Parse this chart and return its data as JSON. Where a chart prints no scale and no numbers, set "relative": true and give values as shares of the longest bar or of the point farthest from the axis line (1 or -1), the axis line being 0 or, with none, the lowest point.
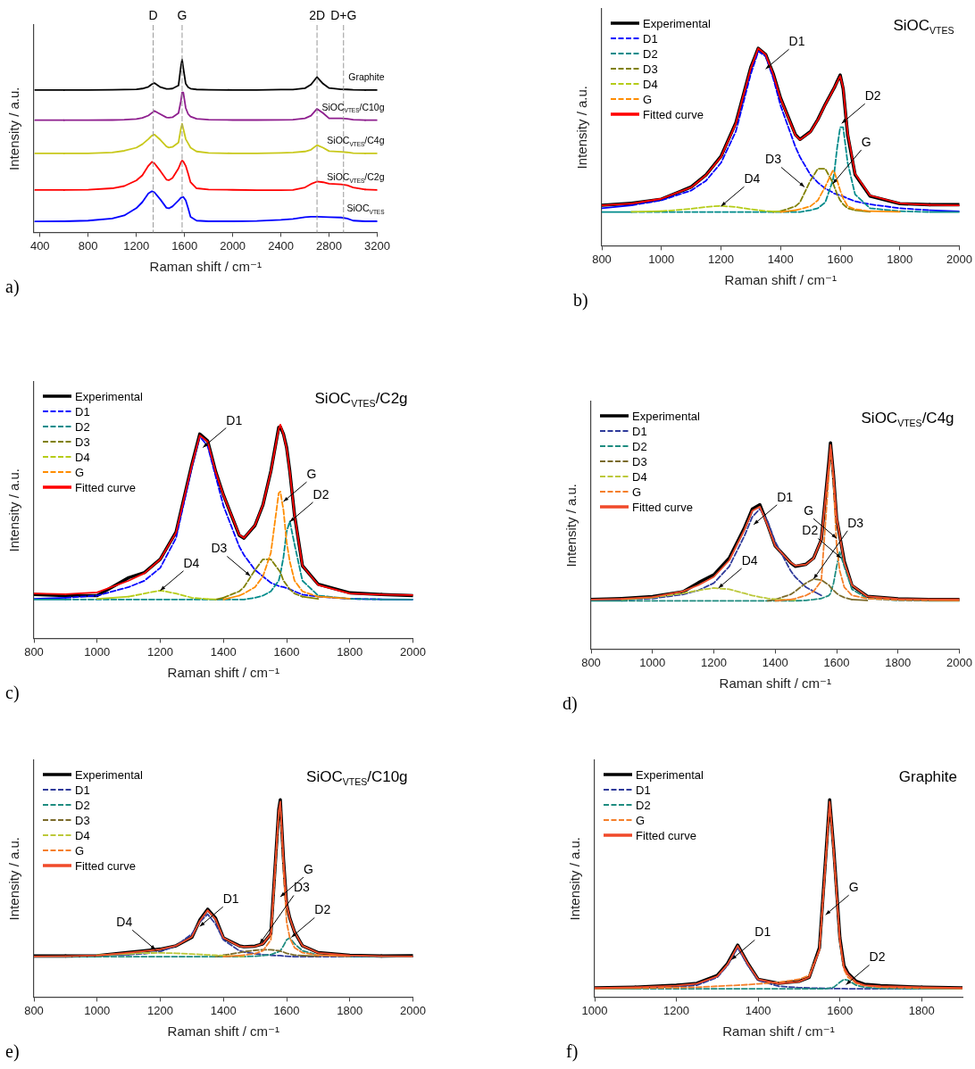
{
  "chart_data": [
    {
      "type": "line",
      "relative": true,
      "xlabel": "Raman shift / cm⁻¹",
      "ylabel": "Intensity / a.u.",
      "xlim": [
        350,
        3200
      ],
      "xticks": [
        400,
        800,
        1200,
        1600,
        2000,
        2400,
        2800,
        3200
      ],
      "marker": "none",
      "legend": false,
      "annotations": [
        "a)"
      ],
      "x": [
        360,
        600,
        800,
        1000,
        1100,
        1200,
        1250,
        1300,
        1330,
        1350,
        1400,
        1450,
        1470,
        1500,
        1550,
        1570,
        1580,
        1590,
        1610,
        1630,
        1650,
        1700,
        1800,
        2000,
        2200,
        2400,
        2500,
        2600,
        2650,
        2700,
        2750,
        2800,
        2900,
        2950,
        3000,
        3100,
        3200
      ],
      "ref_lines": [
        {
          "axis": "x",
          "value": 1340,
          "label": "D",
          "color": "#999999",
          "line_style": "dashed"
        },
        {
          "axis": "x",
          "value": 1580,
          "label": "G",
          "color": "#999999",
          "line_style": "dashed"
        },
        {
          "axis": "x",
          "value": 2700,
          "label": "2D",
          "color": "#999999",
          "line_style": "dashed"
        },
        {
          "axis": "x",
          "value": 2920,
          "label": "D+G",
          "color": "#999999",
          "line_style": "dashed"
        }
      ],
      "series": [
        {
          "name": "Graphite",
          "color": "#000000",
          "values": [
            0.824,
            0.824,
            0.824,
            0.825,
            0.826,
            0.828,
            0.832,
            0.842,
            0.858,
            0.864,
            0.84,
            0.83,
            0.83,
            0.832,
            0.85,
            0.96,
            1.0,
            0.95,
            0.86,
            0.84,
            0.832,
            0.827,
            0.825,
            0.824,
            0.824,
            0.826,
            0.826,
            0.834,
            0.855,
            0.899,
            0.86,
            0.835,
            0.828,
            0.827,
            0.825,
            0.824,
            0.824
          ]
        },
        {
          "name": "SiOC$_{VTES}$/C10g",
          "color": "#8e1e8e",
          "values": [
            0.649,
            0.649,
            0.649,
            0.65,
            0.652,
            0.656,
            0.662,
            0.676,
            0.692,
            0.703,
            0.684,
            0.665,
            0.664,
            0.666,
            0.69,
            0.76,
            0.81,
            0.81,
            0.72,
            0.685,
            0.67,
            0.657,
            0.652,
            0.65,
            0.65,
            0.651,
            0.652,
            0.66,
            0.675,
            0.715,
            0.69,
            0.66,
            0.66,
            0.657,
            0.652,
            0.649,
            0.649
          ]
        },
        {
          "name": "SiOC$_{VTES}$/C4g",
          "color": "#c8c81a",
          "values": [
            0.457,
            0.457,
            0.457,
            0.462,
            0.472,
            0.49,
            0.51,
            0.54,
            0.56,
            0.566,
            0.535,
            0.497,
            0.491,
            0.494,
            0.52,
            0.6,
            0.628,
            0.6,
            0.54,
            0.515,
            0.49,
            0.468,
            0.46,
            0.457,
            0.457,
            0.46,
            0.462,
            0.468,
            0.478,
            0.505,
            0.49,
            0.47,
            0.466,
            0.463,
            0.458,
            0.457,
            0.457
          ]
        },
        {
          "name": "SiOC$_{VTES}$/C2g",
          "color": "#ff0000",
          "values": [
            0.245,
            0.245,
            0.247,
            0.255,
            0.268,
            0.3,
            0.33,
            0.385,
            0.408,
            0.4,
            0.355,
            0.305,
            0.302,
            0.315,
            0.37,
            0.405,
            0.415,
            0.41,
            0.385,
            0.34,
            0.29,
            0.255,
            0.248,
            0.246,
            0.244,
            0.244,
            0.245,
            0.26,
            0.28,
            0.294,
            0.29,
            0.282,
            0.278,
            0.272,
            0.26,
            0.248,
            0.245
          ]
        },
        {
          "name": "SiOC$_{VTES}$",
          "color": "#0000ff",
          "values": [
            0.063,
            0.064,
            0.068,
            0.08,
            0.098,
            0.14,
            0.175,
            0.225,
            0.238,
            0.232,
            0.19,
            0.142,
            0.139,
            0.15,
            0.185,
            0.2,
            0.203,
            0.205,
            0.185,
            0.14,
            0.09,
            0.068,
            0.064,
            0.064,
            0.066,
            0.072,
            0.078,
            0.088,
            0.09,
            0.09,
            0.089,
            0.088,
            0.086,
            0.08,
            0.068,
            0.064,
            0.064
          ]
        }
      ]
    },
    {
      "type": "line",
      "relative": true,
      "title": "SiOC$_{VTES}$",
      "xlabel": "Raman shift / cm⁻¹",
      "ylabel": "Intensity / a.u.",
      "xlim": [
        800,
        2000
      ],
      "xticks": [
        800,
        1000,
        1200,
        1400,
        1600,
        1800,
        2000
      ],
      "marker": "none",
      "legend": "top left",
      "x": [
        800,
        900,
        1000,
        1100,
        1150,
        1200,
        1250,
        1300,
        1325,
        1350,
        1375,
        1400,
        1450,
        1465,
        1500,
        1525,
        1550,
        1575,
        1580,
        1590,
        1600,
        1610,
        1625,
        1650,
        1700,
        1800,
        1900,
        2000
      ],
      "annotations": [
        "b)",
        {
          "text": "D1",
          "x": 1350,
          "y": 0.896
        },
        {
          "text": "D2",
          "x": 1605,
          "y": 0.62
        },
        {
          "text": "D3",
          "x": 1480,
          "y": 0.298
        },
        {
          "text": "G",
          "x": 1575,
          "y": 0.314
        },
        {
          "text": "D4",
          "x": 1200,
          "y": 0.2
        }
      ],
      "series": [
        {
          "name": "Experimental",
          "color": "#000000",
          "line_style": "solid",
          "values": [
            0.205,
            0.215,
            0.236,
            0.298,
            0.36,
            0.453,
            0.624,
            0.904,
            1.0,
            0.969,
            0.873,
            0.748,
            0.562,
            0.539,
            0.578,
            0.64,
            0.717,
            0.787,
            0.8,
            0.834,
            0.865,
            0.795,
            0.562,
            0.36,
            0.252,
            0.213,
            0.208,
            0.208
          ]
        },
        {
          "name": "D1",
          "color": "#0000ff",
          "line_style": "dashed",
          "values": [
            0.19,
            0.205,
            0.23,
            0.28,
            0.33,
            0.42,
            0.58,
            0.87,
            0.985,
            0.96,
            0.85,
            0.71,
            0.5,
            0.45,
            0.36,
            0.32,
            0.29,
            0.27,
            0.265,
            0.26,
            0.255,
            0.25,
            0.24,
            0.225,
            0.21,
            0.19,
            0.18,
            0.174
          ]
        },
        {
          "name": "D2",
          "color": "#008b8b",
          "line_style": "dashed",
          "values": [
            0.171,
            0.171,
            0.171,
            0.171,
            0.171,
            0.171,
            0.171,
            0.171,
            0.171,
            0.171,
            0.171,
            0.171,
            0.171,
            0.171,
            0.18,
            0.19,
            0.22,
            0.33,
            0.37,
            0.5,
            0.6,
            0.6,
            0.42,
            0.26,
            0.19,
            0.175,
            0.171,
            0.171
          ]
        },
        {
          "name": "D3",
          "color": "#808000",
          "line_style": "dashed",
          "values": [
            null,
            null,
            null,
            null,
            null,
            null,
            null,
            null,
            null,
            null,
            0.171,
            0.175,
            0.2,
            0.22,
            0.33,
            0.39,
            0.39,
            0.32,
            0.3,
            0.26,
            0.23,
            0.21,
            0.19,
            0.18,
            0.172,
            null,
            null,
            null
          ]
        },
        {
          "name": "D4",
          "color": "#b5cc18",
          "line_style": "dashed",
          "values": [
            null,
            0.172,
            0.175,
            0.187,
            0.197,
            0.202,
            0.196,
            0.185,
            0.18,
            0.176,
            0.174,
            0.173,
            null,
            null,
            null,
            null,
            null,
            null,
            null,
            null,
            null,
            null,
            null,
            null,
            null,
            null,
            null,
            null
          ]
        },
        {
          "name": "G",
          "color": "#ff8c00",
          "line_style": "dashed",
          "values": [
            null,
            null,
            null,
            null,
            null,
            null,
            null,
            null,
            null,
            null,
            null,
            0.171,
            0.18,
            0.185,
            0.2,
            0.23,
            0.3,
            0.38,
            0.375,
            0.33,
            0.28,
            0.24,
            0.2,
            0.185,
            0.175,
            0.172,
            null,
            null
          ]
        },
        {
          "name": "Fitted curve",
          "color": "#ff0000",
          "line_style": "solid",
          "values": [
            0.205,
            0.214,
            0.238,
            0.296,
            0.358,
            0.45,
            0.62,
            0.9,
            1.0,
            0.968,
            0.87,
            0.745,
            0.56,
            0.537,
            0.576,
            0.638,
            0.715,
            0.785,
            0.8,
            0.83,
            0.86,
            0.8,
            0.57,
            0.365,
            0.255,
            0.215,
            0.207,
            0.205
          ]
        }
      ]
    },
    {
      "type": "line",
      "relative": true,
      "title": "SiOC$_{VTES}$/C2g",
      "xlabel": "Raman shift / cm⁻¹",
      "ylabel": "Intensity / a.u.",
      "xlim": [
        800,
        2000
      ],
      "xticks": [
        800,
        1000,
        1200,
        1400,
        1600,
        1800,
        2000
      ],
      "marker": "none",
      "legend": "top left",
      "x": [
        800,
        900,
        1000,
        1100,
        1150,
        1200,
        1250,
        1300,
        1325,
        1350,
        1375,
        1400,
        1450,
        1465,
        1500,
        1525,
        1550,
        1575,
        1580,
        1590,
        1600,
        1610,
        1625,
        1650,
        1700,
        1800,
        1900,
        2000
      ],
      "annotations": [
        "c)",
        {
          "text": "D1",
          "x": 1335,
          "y": 0.893
        },
        {
          "text": "G",
          "x": 1590,
          "y": 0.64
        },
        {
          "text": "D2",
          "x": 1610,
          "y": 0.545
        },
        {
          "text": "D3",
          "x": 1485,
          "y": 0.292
        },
        {
          "text": "D4",
          "x": 1200,
          "y": 0.224
        }
      ],
      "series": [
        {
          "name": "Experimental",
          "color": "#000000",
          "line_style": "solid",
          "values": [
            0.205,
            0.2,
            0.2,
            0.284,
            0.308,
            0.371,
            0.498,
            0.814,
            0.956,
            0.924,
            0.782,
            0.671,
            0.482,
            0.469,
            0.529,
            0.624,
            0.782,
            0.987,
            0.99,
            0.956,
            0.893,
            0.782,
            0.577,
            0.34,
            0.253,
            0.213,
            0.205,
            0.2
          ]
        },
        {
          "name": "D1",
          "color": "#0000ff",
          "line_style": "dashed",
          "values": [
            0.185,
            0.19,
            0.2,
            0.24,
            0.27,
            0.33,
            0.47,
            0.8,
            0.945,
            0.9,
            0.76,
            0.62,
            0.43,
            0.39,
            0.32,
            0.29,
            0.26,
            0.245,
            0.243,
            0.24,
            0.235,
            0.23,
            0.22,
            0.205,
            0.195,
            0.185,
            0.183,
            0.182
          ]
        },
        {
          "name": "D2",
          "color": "#008b8b",
          "line_style": "dashed",
          "values": [
            0.182,
            0.182,
            0.182,
            0.182,
            0.182,
            0.182,
            0.182,
            0.182,
            0.182,
            0.182,
            0.182,
            0.182,
            0.182,
            0.182,
            0.19,
            0.2,
            0.22,
            0.27,
            0.3,
            0.38,
            0.5,
            0.548,
            0.44,
            0.27,
            0.2,
            0.185,
            0.182,
            0.182
          ]
        },
        {
          "name": "D3",
          "color": "#808000",
          "line_style": "dashed",
          "values": [
            null,
            null,
            null,
            null,
            null,
            null,
            null,
            null,
            null,
            null,
            0.182,
            0.19,
            0.22,
            0.24,
            0.32,
            0.37,
            0.37,
            0.32,
            0.31,
            0.27,
            0.25,
            0.23,
            0.21,
            0.195,
            0.185,
            null,
            null,
            null
          ]
        },
        {
          "name": "D4",
          "color": "#b5cc18",
          "line_style": "dashed",
          "values": [
            null,
            null,
            0.185,
            0.195,
            0.21,
            0.224,
            0.21,
            0.19,
            0.187,
            0.184,
            0.183,
            null,
            null,
            null,
            null,
            null,
            null,
            null,
            null,
            null,
            null,
            null,
            null,
            null,
            null,
            null,
            null,
            null
          ]
        },
        {
          "name": "G",
          "color": "#ff8c00",
          "line_style": "dashed",
          "values": [
            null,
            null,
            null,
            null,
            null,
            null,
            null,
            null,
            null,
            null,
            null,
            0.182,
            0.2,
            0.21,
            0.24,
            0.29,
            0.4,
            0.68,
            0.687,
            0.6,
            0.45,
            0.36,
            0.27,
            0.22,
            0.195,
            0.186,
            null,
            null
          ]
        },
        {
          "name": "Fitted curve",
          "color": "#ff0000",
          "line_style": "solid",
          "values": [
            0.21,
            0.207,
            0.215,
            0.27,
            0.305,
            0.37,
            0.495,
            0.81,
            0.95,
            0.92,
            0.78,
            0.67,
            0.485,
            0.47,
            0.53,
            0.625,
            0.78,
            0.98,
            1.0,
            0.955,
            0.89,
            0.78,
            0.575,
            0.34,
            0.25,
            0.21,
            0.205,
            0.203
          ]
        }
      ]
    },
    {
      "type": "line",
      "relative": true,
      "title": "SiOC$_{VTES}$/C4g",
      "xlabel": "Raman shift / cm⁻¹",
      "ylabel": "Intensity / a.u.",
      "xlim": [
        800,
        2000
      ],
      "xticks": [
        800,
        1000,
        1200,
        1400,
        1600,
        1800,
        2000
      ],
      "marker": "none",
      "legend": "top left",
      "x": [
        800,
        900,
        1000,
        1100,
        1150,
        1200,
        1250,
        1300,
        1325,
        1350,
        1375,
        1400,
        1450,
        1465,
        1500,
        1525,
        1550,
        1575,
        1580,
        1590,
        1600,
        1610,
        1625,
        1650,
        1700,
        1800,
        1900,
        2000
      ],
      "annotations": [
        "d)",
        {
          "text": "D1",
          "x": 1330,
          "y": 0.604
        },
        {
          "text": "D3",
          "x": 1525,
          "y": 0.34
        },
        {
          "text": "G",
          "x": 1600,
          "y": 0.537
        },
        {
          "text": "D2",
          "x": 1615,
          "y": 0.441
        },
        {
          "text": "D4",
          "x": 1215,
          "y": 0.296
        }
      ],
      "series": [
        {
          "name": "Experimental",
          "color": "#000000",
          "line_style": "solid",
          "values": [
            0.241,
            0.245,
            0.255,
            0.278,
            0.322,
            0.36,
            0.441,
            0.589,
            0.678,
            0.7,
            0.604,
            0.5,
            0.419,
            0.401,
            0.411,
            0.441,
            0.53,
            0.914,
            1.0,
            0.84,
            0.633,
            0.55,
            0.426,
            0.308,
            0.256,
            0.244,
            0.241,
            0.241
          ]
        },
        {
          "name": "D1",
          "color": "#2e3a9a",
          "line_style": "dashed",
          "values": [
            0.235,
            0.238,
            0.245,
            0.265,
            0.285,
            0.32,
            0.4,
            0.55,
            0.64,
            0.68,
            0.62,
            0.52,
            0.38,
            0.35,
            0.3,
            0.28,
            0.26,
            null,
            null,
            null,
            null,
            null,
            null,
            null,
            null,
            null,
            null,
            null
          ]
        },
        {
          "name": "D2",
          "color": "#1e8c80",
          "line_style": "dashed",
          "values": [
            0.234,
            0.234,
            0.234,
            0.234,
            0.234,
            0.234,
            0.234,
            0.234,
            0.234,
            0.234,
            0.234,
            0.234,
            0.234,
            0.234,
            0.236,
            0.24,
            0.245,
            0.26,
            0.27,
            0.32,
            0.4,
            0.47,
            0.4,
            0.29,
            0.245,
            0.236,
            0.234,
            0.234
          ]
        },
        {
          "name": "D3",
          "color": "#7a6a2a",
          "line_style": "dashed",
          "values": [
            null,
            null,
            null,
            null,
            null,
            null,
            null,
            null,
            null,
            null,
            0.234,
            0.24,
            0.265,
            0.28,
            0.32,
            0.34,
            0.335,
            0.31,
            0.3,
            0.285,
            0.27,
            0.26,
            0.25,
            0.24,
            0.236,
            null,
            null,
            null
          ]
        },
        {
          "name": "D4",
          "color": "#bcc83a",
          "line_style": "dashed",
          "values": [
            null,
            0.24,
            0.25,
            0.27,
            0.285,
            0.296,
            0.29,
            0.27,
            0.26,
            0.252,
            0.246,
            0.242,
            0.238,
            0.237,
            null,
            null,
            null,
            null,
            null,
            null,
            null,
            null,
            null,
            null,
            null,
            null,
            null,
            null
          ]
        },
        {
          "name": "G",
          "color": "#f57f2a",
          "line_style": "dashed",
          "values": [
            null,
            null,
            null,
            null,
            null,
            null,
            null,
            null,
            null,
            null,
            null,
            0.234,
            0.24,
            0.245,
            0.26,
            0.28,
            0.33,
            0.85,
            0.98,
            0.8,
            0.5,
            0.38,
            0.3,
            0.26,
            0.245,
            0.238,
            0.236,
            0.235
          ]
        },
        {
          "name": "Fitted curve",
          "color": "#f04a2a",
          "line_style": "solid",
          "values": [
            0.24,
            0.243,
            0.252,
            0.28,
            0.31,
            0.35,
            0.43,
            0.58,
            0.67,
            0.69,
            0.6,
            0.5,
            0.42,
            0.405,
            0.41,
            0.44,
            0.53,
            0.9,
            0.99,
            0.84,
            0.64,
            0.55,
            0.42,
            0.31,
            0.255,
            0.243,
            0.241,
            0.241
          ]
        }
      ]
    },
    {
      "type": "line",
      "relative": true,
      "title": "SiOC$_{VTES}$/C10g",
      "xlabel": "Raman shift / cm⁻¹",
      "ylabel": "Intensity / a.u.",
      "xlim": [
        800,
        2000
      ],
      "xticks": [
        800,
        1000,
        1200,
        1400,
        1600,
        1800,
        2000
      ],
      "marker": "none",
      "legend": "top left",
      "x": [
        800,
        900,
        1000,
        1100,
        1150,
        1200,
        1250,
        1300,
        1325,
        1350,
        1375,
        1400,
        1450,
        1465,
        1500,
        1525,
        1550,
        1575,
        1580,
        1590,
        1600,
        1610,
        1625,
        1650,
        1700,
        1800,
        1900,
        2000
      ],
      "annotations": [
        "e)",
        {
          "text": "D1",
          "x": 1325,
          "y": 0.358
        },
        {
          "text": "D4",
          "x": 1185,
          "y": 0.24
        },
        {
          "text": "D3",
          "x": 1515,
          "y": 0.271
        },
        {
          "text": "G",
          "x": 1580,
          "y": 0.508
        },
        {
          "text": "D2",
          "x": 1615,
          "y": 0.303
        }
      ],
      "series": [
        {
          "name": "Experimental",
          "color": "#000000",
          "line_style": "solid",
          "values": [
            0.208,
            0.208,
            0.21,
            0.227,
            0.235,
            0.243,
            0.26,
            0.303,
            0.39,
            0.445,
            0.4,
            0.3,
            0.26,
            0.255,
            0.258,
            0.27,
            0.32,
            0.95,
            1.0,
            0.7,
            0.47,
            0.4,
            0.33,
            0.26,
            0.225,
            0.212,
            0.208,
            0.21
          ]
        },
        {
          "name": "D1",
          "color": "#2e3a9a",
          "line_style": "dashed",
          "values": [
            null,
            null,
            0.21,
            0.215,
            0.22,
            0.23,
            0.26,
            0.32,
            0.38,
            0.42,
            0.37,
            0.29,
            0.235,
            0.228,
            0.22,
            0.215,
            0.212,
            0.21,
            0.21,
            0.208,
            0.207,
            0.206,
            0.205,
            0.205,
            0.205,
            0.205,
            0.205,
            0.205
          ]
        },
        {
          "name": "D2",
          "color": "#1e8c80",
          "line_style": "dashed",
          "values": [
            0.205,
            0.205,
            0.205,
            0.205,
            0.205,
            0.205,
            0.205,
            0.205,
            0.205,
            0.205,
            0.205,
            0.205,
            0.205,
            0.205,
            0.207,
            0.21,
            0.215,
            0.23,
            0.235,
            0.26,
            0.29,
            0.3,
            0.27,
            0.235,
            0.212,
            0.206,
            0.205,
            0.205
          ]
        },
        {
          "name": "D3",
          "color": "#7a6a2a",
          "line_style": "dashed",
          "values": [
            null,
            null,
            null,
            null,
            null,
            null,
            null,
            null,
            null,
            null,
            0.205,
            0.212,
            0.225,
            0.23,
            0.237,
            0.24,
            0.24,
            0.235,
            0.233,
            0.228,
            0.222,
            0.218,
            0.213,
            0.21,
            0.207,
            null,
            null,
            null
          ]
        },
        {
          "name": "D4",
          "color": "#bcc83a",
          "line_style": "dashed",
          "values": [
            null,
            null,
            0.212,
            0.22,
            0.223,
            0.224,
            0.222,
            0.218,
            0.216,
            0.214,
            0.212,
            0.21,
            0.207,
            0.206,
            null,
            null,
            null,
            null,
            null,
            null,
            null,
            null,
            null,
            null,
            null,
            null,
            null,
            null
          ]
        },
        {
          "name": "G",
          "color": "#f57f2a",
          "line_style": "dashed",
          "values": [
            null,
            null,
            null,
            null,
            null,
            null,
            null,
            null,
            null,
            null,
            null,
            0.205,
            0.21,
            0.213,
            0.22,
            0.235,
            0.29,
            0.93,
            0.98,
            0.65,
            0.38,
            0.3,
            0.25,
            0.225,
            0.212,
            0.207,
            null,
            null
          ]
        },
        {
          "name": "Fitted curve",
          "color": "#f04a2a",
          "line_style": "solid",
          "values": [
            0.206,
            0.207,
            0.21,
            0.225,
            0.233,
            0.242,
            0.26,
            0.305,
            0.385,
            0.44,
            0.395,
            0.3,
            0.258,
            0.254,
            0.257,
            0.27,
            0.32,
            0.94,
            0.99,
            0.7,
            0.47,
            0.4,
            0.33,
            0.26,
            0.224,
            0.211,
            0.207,
            0.206
          ]
        }
      ]
    },
    {
      "type": "line",
      "relative": true,
      "title": "Graphite",
      "xlabel": "Raman shift / cm⁻¹",
      "ylabel": "Intensity / a.u.",
      "xlim": [
        1000,
        1900
      ],
      "xticks": [
        1000,
        1200,
        1400,
        1600,
        1800
      ],
      "marker": "none",
      "legend": "top left",
      "x": [
        1000,
        1100,
        1200,
        1250,
        1300,
        1325,
        1350,
        1375,
        1400,
        1450,
        1500,
        1525,
        1550,
        1565,
        1575,
        1585,
        1600,
        1610,
        1620,
        1640,
        1660,
        1700,
        1800,
        1900
      ],
      "annotations": [
        "f)",
        {
          "text": "D1",
          "x": 1335,
          "y": 0.19
        },
        {
          "text": "G",
          "x": 1565,
          "y": 0.417
        },
        {
          "text": "D2",
          "x": 1615,
          "y": 0.063
        }
      ],
      "series": [
        {
          "name": "Experimental",
          "color": "#000000",
          "line_style": "solid",
          "values": [
            0.047,
            0.05,
            0.06,
            0.07,
            0.11,
            0.17,
            0.263,
            0.17,
            0.09,
            0.07,
            0.08,
            0.1,
            0.25,
            0.7,
            1.0,
            0.75,
            0.3,
            0.16,
            0.12,
            0.08,
            0.065,
            0.058,
            0.05,
            0.047
          ]
        },
        {
          "name": "D1",
          "color": "#2e3a9a",
          "line_style": "dashed",
          "values": [
            0.042,
            0.044,
            0.05,
            0.06,
            0.1,
            0.16,
            0.25,
            0.16,
            0.085,
            0.055,
            0.048,
            0.046,
            0.045,
            0.044,
            0.044,
            0.043,
            0.043,
            0.043,
            0.042,
            0.042,
            0.042,
            0.042,
            0.042,
            0.042
          ]
        },
        {
          "name": "D2",
          "color": "#1e8c80",
          "line_style": "dashed",
          "values": [
            0.042,
            0.042,
            0.042,
            0.042,
            0.042,
            0.042,
            0.042,
            0.042,
            0.042,
            0.042,
            0.042,
            0.042,
            0.042,
            0.042,
            0.045,
            0.05,
            0.075,
            0.09,
            0.085,
            0.06,
            0.05,
            0.044,
            0.042,
            0.042
          ]
        },
        {
          "name": "G",
          "color": "#f57f2a",
          "line_style": "dashed",
          "values": [
            0.043,
            0.045,
            0.048,
            0.05,
            0.055,
            0.058,
            0.06,
            0.063,
            0.067,
            0.075,
            0.09,
            0.11,
            0.24,
            0.68,
            0.98,
            0.73,
            0.28,
            0.14,
            0.1,
            0.07,
            0.058,
            0.05,
            0.045,
            0.043
          ]
        },
        {
          "name": "Fitted curve",
          "color": "#f04a2a",
          "line_style": "solid",
          "values": [
            0.046,
            0.05,
            0.058,
            0.068,
            0.105,
            0.165,
            0.26,
            0.168,
            0.09,
            0.068,
            0.078,
            0.1,
            0.24,
            0.68,
            0.99,
            0.74,
            0.29,
            0.15,
            0.115,
            0.075,
            0.06,
            0.055,
            0.05,
            0.046
          ]
        }
      ]
    }
  ]
}
